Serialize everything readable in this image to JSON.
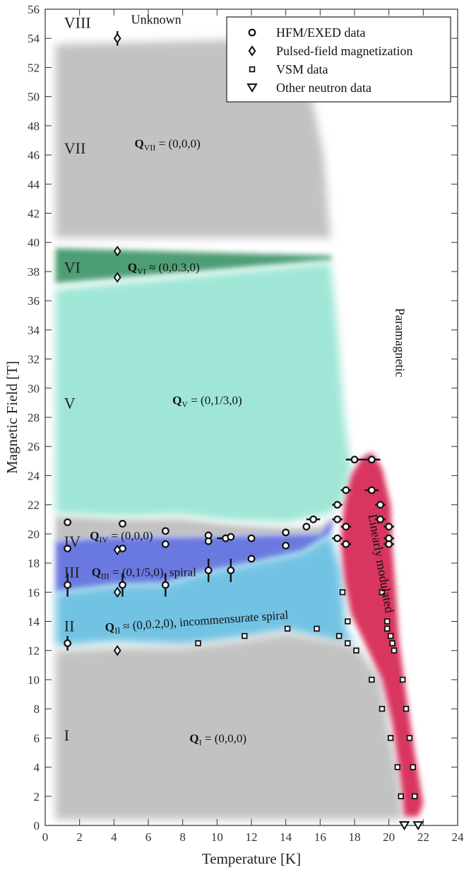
{
  "chart_data": {
    "type": "scatter",
    "xlabel": "Temperature [K]",
    "ylabel": "Magnetic Field [T]",
    "xlim": [
      0,
      24
    ],
    "ylim": [
      0,
      56
    ],
    "xticks": [
      0,
      2,
      4,
      6,
      8,
      10,
      12,
      14,
      16,
      18,
      20,
      22,
      24
    ],
    "yticks": [
      0,
      2,
      4,
      6,
      8,
      10,
      12,
      14,
      16,
      18,
      20,
      22,
      24,
      26,
      28,
      30,
      32,
      34,
      36,
      38,
      40,
      42,
      44,
      46,
      48,
      50,
      52,
      54,
      56
    ],
    "grid": false,
    "legend_position": "top-right",
    "legend": [
      {
        "marker": "circle",
        "label": "HFM/EXED data"
      },
      {
        "marker": "diamond",
        "label": "Pulsed-field magnetization"
      },
      {
        "marker": "square",
        "label": "VSM data"
      },
      {
        "marker": "triangle-down",
        "label": "Other neutron data"
      }
    ],
    "phases": [
      {
        "roman": "VIII",
        "q_label": "",
        "color": "#ffffff"
      },
      {
        "roman": "VII",
        "q_sub": "VII",
        "q_value": "= (0,0,0)",
        "color": "#c2c2c2"
      },
      {
        "roman": "VI",
        "q_sub": "VI",
        "q_value": "≈ (0,0.3,0)",
        "color": "#4e9e74"
      },
      {
        "roman": "V",
        "q_sub": "V",
        "q_value": "= (0,1/3,0)",
        "color": "#9fe6d6"
      },
      {
        "roman": "IV",
        "q_sub": "IV",
        "q_value": "= (0,0,0)",
        "color": "#c2c2c2"
      },
      {
        "roman": "III",
        "q_sub": "III",
        "q_value": "= (0,1/5,0), spiral",
        "color": "#6b79df"
      },
      {
        "roman": "II",
        "q_sub": "II",
        "q_value": "≈ (0,0.2,0), incommensurate spiral",
        "color": "#72c3e3"
      },
      {
        "roman": "I",
        "q_sub": "I",
        "q_value": "= (0,0,0)",
        "color": "#c2c2c2"
      }
    ],
    "q_symbol": "Q",
    "region_labels": {
      "unknown": "Unknown",
      "paramagnetic": "Paramagnetic",
      "linear": "Linearly modulated"
    },
    "region_colors": {
      "linear": "#d8365e"
    },
    "series": [
      {
        "name": "HFM/EXED data",
        "marker": "circle",
        "points": [
          {
            "x": 1.3,
            "y": 20.8
          },
          {
            "x": 1.3,
            "y": 19.0
          },
          {
            "x": 1.3,
            "y": 16.5,
            "yerr": 0.8
          },
          {
            "x": 1.3,
            "y": 12.5,
            "yerr": 0.5
          },
          {
            "x": 4.5,
            "y": 20.7
          },
          {
            "x": 4.5,
            "y": 19.0
          },
          {
            "x": 4.5,
            "y": 16.5,
            "yerr": 0.8
          },
          {
            "x": 7.0,
            "y": 20.2
          },
          {
            "x": 7.0,
            "y": 19.3
          },
          {
            "x": 7.0,
            "y": 16.5,
            "yerr": 0.8
          },
          {
            "x": 9.5,
            "y": 19.9
          },
          {
            "x": 9.5,
            "y": 19.5
          },
          {
            "x": 9.5,
            "y": 17.5,
            "yerr": 0.8
          },
          {
            "x": 10.5,
            "y": 19.7,
            "xerr": 0.5
          },
          {
            "x": 10.8,
            "y": 19.8
          },
          {
            "x": 10.8,
            "y": 17.5,
            "yerr": 0.8
          },
          {
            "x": 12.0,
            "y": 19.7
          },
          {
            "x": 12.0,
            "y": 18.3
          },
          {
            "x": 14.0,
            "y": 20.1
          },
          {
            "x": 14.0,
            "y": 19.2
          },
          {
            "x": 15.2,
            "y": 20.5
          },
          {
            "x": 15.6,
            "y": 21.0,
            "xerr": 0.4
          },
          {
            "x": 17.0,
            "y": 22.0,
            "xerr": 0.3
          },
          {
            "x": 17.0,
            "y": 21.0,
            "xerr": 0.3
          },
          {
            "x": 17.0,
            "y": 19.7,
            "xerr": 0.3
          },
          {
            "x": 17.5,
            "y": 23.0,
            "xerr": 0.3
          },
          {
            "x": 17.5,
            "y": 20.5,
            "xerr": 0.3
          },
          {
            "x": 17.5,
            "y": 19.3,
            "xerr": 0.3
          },
          {
            "x": 18.0,
            "y": 25.1,
            "xerr": 0.5
          },
          {
            "x": 19.0,
            "y": 25.1,
            "xerr": 0.5
          },
          {
            "x": 19.0,
            "y": 23.0,
            "xerr": 0.4
          },
          {
            "x": 19.5,
            "y": 22.0,
            "xerr": 0.3
          },
          {
            "x": 19.5,
            "y": 21.0,
            "xerr": 0.3
          },
          {
            "x": 20.0,
            "y": 20.5,
            "xerr": 0.3
          },
          {
            "x": 20.0,
            "y": 19.7,
            "xerr": 0.3
          },
          {
            "x": 20.0,
            "y": 19.3,
            "xerr": 0.3
          }
        ]
      },
      {
        "name": "Pulsed-field magnetization",
        "marker": "diamond",
        "points": [
          {
            "x": 4.2,
            "y": 54.0,
            "yerr": 0.5
          },
          {
            "x": 4.2,
            "y": 39.4
          },
          {
            "x": 4.2,
            "y": 37.6
          },
          {
            "x": 4.2,
            "y": 18.9
          },
          {
            "x": 4.2,
            "y": 16.0
          },
          {
            "x": 4.2,
            "y": 12.0
          }
        ]
      },
      {
        "name": "VSM data",
        "marker": "square",
        "points": [
          {
            "x": 8.9,
            "y": 12.5
          },
          {
            "x": 11.6,
            "y": 13.0
          },
          {
            "x": 14.1,
            "y": 13.5
          },
          {
            "x": 15.8,
            "y": 13.5
          },
          {
            "x": 17.1,
            "y": 13.0
          },
          {
            "x": 17.3,
            "y": 16.0
          },
          {
            "x": 17.6,
            "y": 14.0
          },
          {
            "x": 17.6,
            "y": 12.5
          },
          {
            "x": 18.1,
            "y": 12.0
          },
          {
            "x": 19.0,
            "y": 10.0
          },
          {
            "x": 19.6,
            "y": 16.0
          },
          {
            "x": 19.6,
            "y": 8.0
          },
          {
            "x": 19.9,
            "y": 14.0
          },
          {
            "x": 19.9,
            "y": 13.5
          },
          {
            "x": 20.1,
            "y": 13.0
          },
          {
            "x": 20.1,
            "y": 6.0
          },
          {
            "x": 20.2,
            "y": 12.5
          },
          {
            "x": 20.3,
            "y": 12.0
          },
          {
            "x": 20.5,
            "y": 4.0
          },
          {
            "x": 20.7,
            "y": 2.0
          },
          {
            "x": 20.8,
            "y": 10.0
          },
          {
            "x": 21.0,
            "y": 8.0
          },
          {
            "x": 21.2,
            "y": 6.0
          },
          {
            "x": 21.4,
            "y": 4.0
          },
          {
            "x": 21.5,
            "y": 2.0
          }
        ]
      },
      {
        "name": "Other neutron data",
        "marker": "triangle-down",
        "points": [
          {
            "x": 20.9,
            "y": 0.0
          },
          {
            "x": 21.7,
            "y": 0.0
          }
        ]
      }
    ]
  }
}
